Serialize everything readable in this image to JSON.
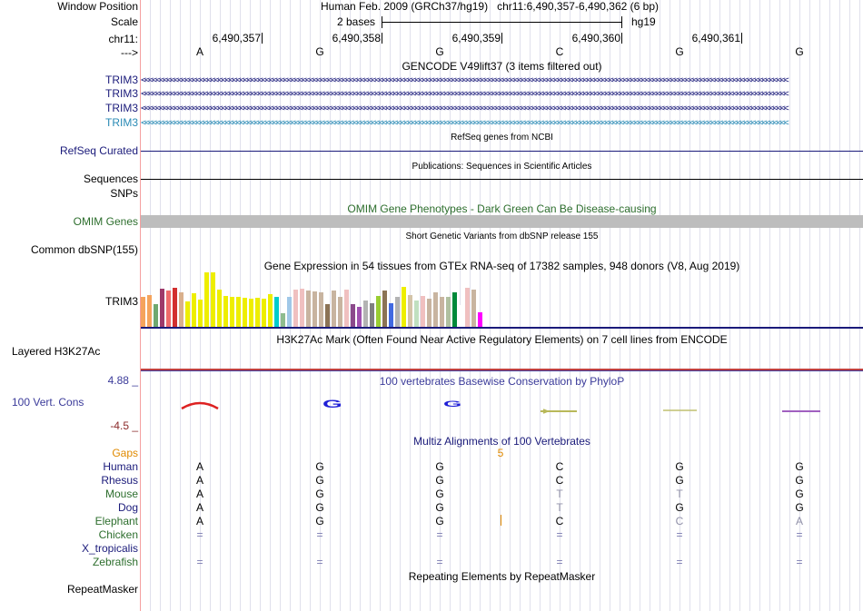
{
  "header": {
    "window_position_label": "Window Position",
    "scale_label": "Scale",
    "chrom_label": "chr11:",
    "strand_label": "--->",
    "assembly_text": "Human Feb. 2009 (GRCh37/hg19)   chr11:6,490,357-6,490,362 (6 bp)",
    "scale_text": "2 bases",
    "scale_db": "hg19",
    "coords": [
      "6,490,357",
      "6,490,358",
      "6,490,359",
      "6,490,360",
      "6,490,361"
    ],
    "bases": [
      "A",
      "G",
      "G",
      "C",
      "G",
      "G"
    ]
  },
  "gencode": {
    "title": "GENCODE V49lift37 (3 items filtered out)",
    "genes": [
      {
        "name": "TRIM3",
        "color": "#1a1a7a"
      },
      {
        "name": "TRIM3",
        "color": "#1a1a7a"
      },
      {
        "name": "TRIM3",
        "color": "#1a1a7a"
      },
      {
        "name": "TRIM3",
        "color": "#2a8ab5"
      }
    ],
    "arrow_text": "<<<<<<<<<<<<<<<<<<<<<<<<<<<<<<<<<<<<<<<<<<<<<<<<<<<<<<<<<<<<<<<<<<<<<<<<<<<<<<<<<<<<<<<<<<<<<<<<<<<<<<<<<<<<<<<<<<<<<<<<<<<<<<<<<<<<<<<<<<<<<<<<<<<<<<<<<<<<<<<<<<<<<<<<<<<<<<<<<"
  },
  "refseq": {
    "title": "RefSeq genes from NCBI",
    "label": "RefSeq Curated"
  },
  "publications": {
    "title": "Publications: Sequences in Scientific Articles",
    "label1": "Sequences",
    "label2": "SNPs"
  },
  "omim": {
    "title": "OMIM Gene Phenotypes - Dark Green Can Be Disease-causing",
    "label": "OMIM Genes"
  },
  "dbsnp": {
    "title": "Short Genetic Variants from dbSNP release 155",
    "label": "Common dbSNP(155)"
  },
  "gtex": {
    "title": "Gene Expression in 54 tissues from GTEx RNA-seq of 17382 samples, 948 donors (V8, Aug 2019)",
    "gene": "TRIM3",
    "bars": [
      {
        "v": 0.55,
        "c": "#f5a35c"
      },
      {
        "v": 0.58,
        "c": "#f5a35c"
      },
      {
        "v": 0.42,
        "c": "#6fa86f"
      },
      {
        "v": 0.7,
        "c": "#9e3a6a"
      },
      {
        "v": 0.66,
        "c": "#ee6b6b"
      },
      {
        "v": 0.72,
        "c": "#d22f2f"
      },
      {
        "v": 0.64,
        "c": "#d9b08c"
      },
      {
        "v": 0.47,
        "c": "#eeee00"
      },
      {
        "v": 0.62,
        "c": "#eeee00"
      },
      {
        "v": 0.5,
        "c": "#eeee00"
      },
      {
        "v": 1.0,
        "c": "#eeee00"
      },
      {
        "v": 1.0,
        "c": "#eeee00"
      },
      {
        "v": 0.68,
        "c": "#eeee00"
      },
      {
        "v": 0.56,
        "c": "#eeee00"
      },
      {
        "v": 0.55,
        "c": "#eeee00"
      },
      {
        "v": 0.55,
        "c": "#eeee00"
      },
      {
        "v": 0.53,
        "c": "#eeee00"
      },
      {
        "v": 0.52,
        "c": "#eeee00"
      },
      {
        "v": 0.53,
        "c": "#eeee00"
      },
      {
        "v": 0.52,
        "c": "#eeee00"
      },
      {
        "v": 0.6,
        "c": "#eeee00"
      },
      {
        "v": 0.55,
        "c": "#00cccc"
      },
      {
        "v": 0.25,
        "c": "#8fbc8f"
      },
      {
        "v": 0.55,
        "c": "#a0c8e8"
      },
      {
        "v": 0.68,
        "c": "#f0c0c0"
      },
      {
        "v": 0.7,
        "c": "#f0c0c0"
      },
      {
        "v": 0.67,
        "c": "#c8b4a0"
      },
      {
        "v": 0.65,
        "c": "#c8b4a0"
      },
      {
        "v": 0.63,
        "c": "#c8b4a0"
      },
      {
        "v": 0.42,
        "c": "#8b7355"
      },
      {
        "v": 0.66,
        "c": "#c8b4a0"
      },
      {
        "v": 0.55,
        "c": "#c8b4a0"
      },
      {
        "v": 0.68,
        "c": "#f0c0c0"
      },
      {
        "v": 0.42,
        "c": "#8b4a8b"
      },
      {
        "v": 0.36,
        "c": "#a050b0"
      },
      {
        "v": 0.48,
        "c": "#b3b3b3"
      },
      {
        "v": 0.43,
        "c": "#808080"
      },
      {
        "v": 0.56,
        "c": "#9acd32"
      },
      {
        "v": 0.66,
        "c": "#8b7355"
      },
      {
        "v": 0.44,
        "c": "#4169e1"
      },
      {
        "v": 0.55,
        "c": "#b3b3b3"
      },
      {
        "v": 0.73,
        "c": "#eeee00"
      },
      {
        "v": 0.58,
        "c": "#d4c4a8"
      },
      {
        "v": 0.48,
        "c": "#c0e0c0"
      },
      {
        "v": 0.57,
        "c": "#f0c0c0"
      },
      {
        "v": 0.52,
        "c": "#c8b4a0"
      },
      {
        "v": 0.63,
        "c": "#c8b4a0"
      },
      {
        "v": 0.55,
        "c": "#c8b4a0"
      },
      {
        "v": 0.55,
        "c": "#b0c0a0"
      },
      {
        "v": 0.63,
        "c": "#008a3a"
      },
      {
        "v": 0.4,
        "c": "#ffffff"
      },
      {
        "v": 0.72,
        "c": "#f0c0c0"
      },
      {
        "v": 0.68,
        "c": "#c8b4a0"
      },
      {
        "v": 0.27,
        "c": "#ff00ff"
      }
    ]
  },
  "h3k27ac": {
    "title": "H3K27Ac Mark (Often Found Near Active Regulatory Elements) on 7 cell lines from ENCODE",
    "label": "Layered H3K27Ac"
  },
  "phylop": {
    "title": "100 vertebrates Basewise Conservation by PhyloP",
    "label": "100 Vert. Cons",
    "ymax": "4.88 _",
    "ymin": "-4.5 _"
  },
  "multiz": {
    "title": "Multiz Alignments of 100 Vertebrates",
    "gaps_label": "Gaps",
    "gap_value": "5",
    "species": [
      {
        "name": "Human",
        "color": "#1a1a7a",
        "bases": [
          "A",
          "G",
          "G",
          "C",
          "G",
          "G"
        ]
      },
      {
        "name": "Rhesus",
        "color": "#1a1a7a",
        "bases": [
          "A",
          "G",
          "G",
          "C",
          "G",
          "G"
        ]
      },
      {
        "name": "Mouse",
        "color": "#2d6e2d",
        "bases": [
          "A",
          "G",
          "G",
          "T",
          "T",
          "G"
        ]
      },
      {
        "name": "Dog",
        "color": "#1a1a7a",
        "bases": [
          "A",
          "G",
          "G",
          "T",
          "G",
          "G"
        ]
      },
      {
        "name": "Elephant",
        "color": "#2d6e2d",
        "bases": [
          "A",
          "G",
          "G",
          "C",
          "C",
          "A"
        ]
      },
      {
        "name": "Chicken",
        "color": "#2d6e2d",
        "bases": [
          "=",
          "=",
          "=",
          "=",
          "=",
          "="
        ]
      },
      {
        "name": "X_tropicalis",
        "color": "#1a1a7a",
        "bases": [
          "",
          "",
          "",
          "",
          "",
          ""
        ]
      },
      {
        "name": "Zebrafish",
        "color": "#2d6e2d",
        "bases": [
          "=",
          "=",
          "=",
          "=",
          "=",
          "="
        ]
      }
    ]
  },
  "repeatmasker": {
    "title": "Repeating Elements by RepeatMasker",
    "label": "RepeatMasker"
  }
}
